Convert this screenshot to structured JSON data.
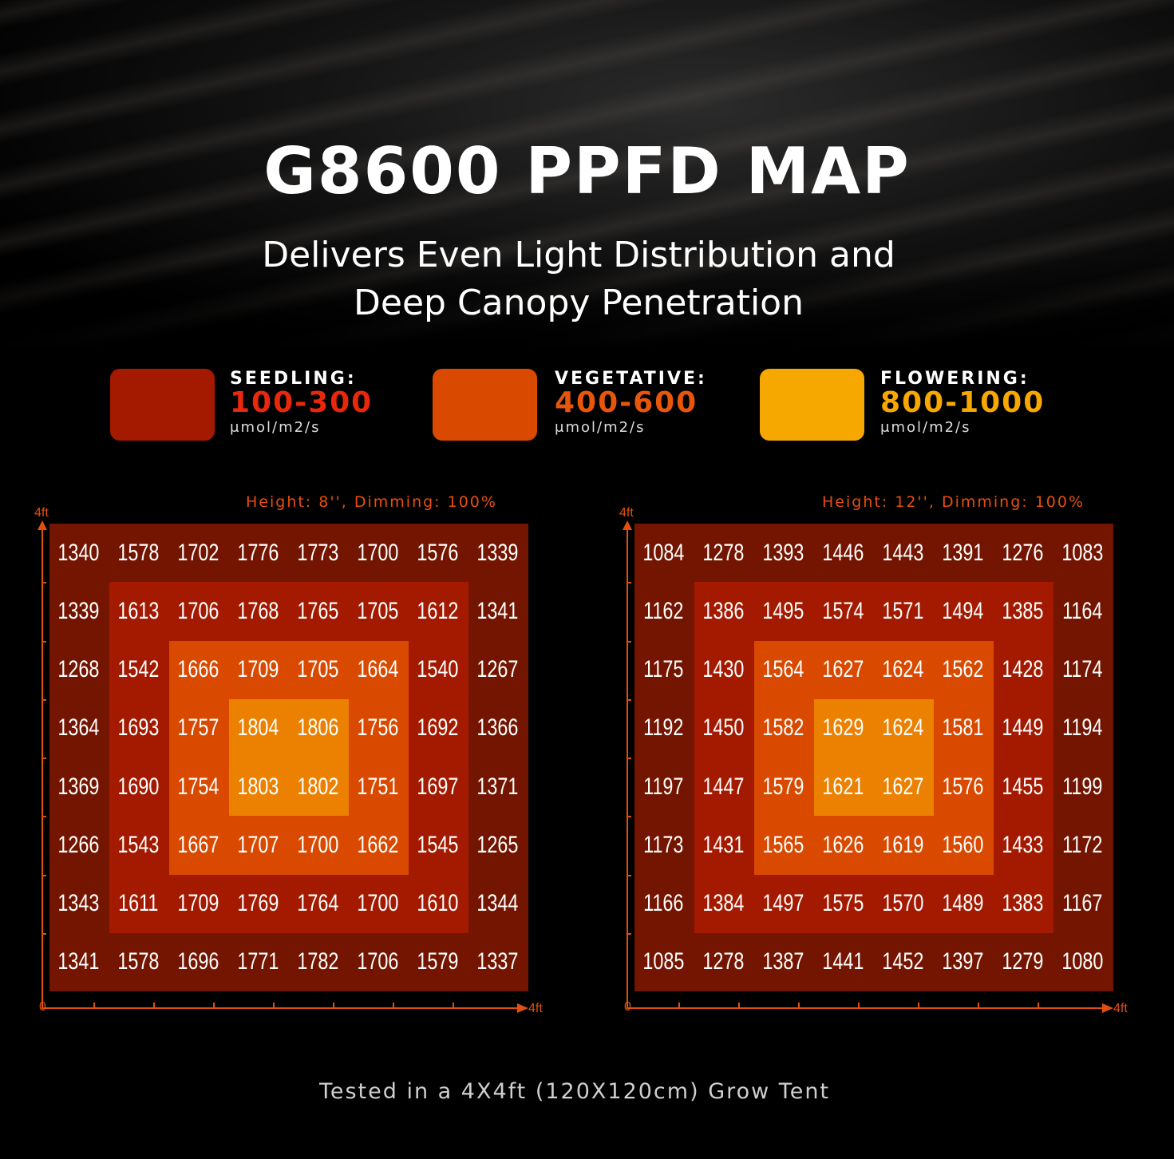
{
  "header": {
    "title": "G8600 PPFD MAP",
    "subtitle_line1": "Delivers Even Light Distribution and",
    "subtitle_line2": "Deep Canopy Penetration"
  },
  "legend": [
    {
      "label": "SEEDLING:",
      "range": "100-300",
      "unit": "μmol/m2/s",
      "swatch_color": "#a31a00",
      "text_color": "#e8280a"
    },
    {
      "label": "VEGETATIVE:",
      "range": "400-600",
      "unit": "μmol/m2/s",
      "swatch_color": "#d94a00",
      "text_color": "#e8560a"
    },
    {
      "label": "FLOWERING:",
      "range": "800-1000",
      "unit": "μmol/m2/s",
      "swatch_color": "#f7a800",
      "text_color": "#f7a800"
    }
  ],
  "zone_colors": [
    "#731500",
    "#a31a00",
    "#d94a00",
    "#ec8000"
  ],
  "chart_data": [
    {
      "type": "heatmap",
      "title": "Height: 8'', Dimming: 100%",
      "x_axis": {
        "min_label": "0",
        "max_label": "4ft"
      },
      "y_axis": {
        "max_label": "4ft"
      },
      "values": [
        [
          1340,
          1578,
          1702,
          1776,
          1773,
          1700,
          1576,
          1339
        ],
        [
          1339,
          1613,
          1706,
          1768,
          1765,
          1705,
          1612,
          1341
        ],
        [
          1268,
          1542,
          1666,
          1709,
          1705,
          1664,
          1540,
          1267
        ],
        [
          1364,
          1693,
          1757,
          1804,
          1806,
          1756,
          1692,
          1366
        ],
        [
          1369,
          1690,
          1754,
          1803,
          1802,
          1751,
          1697,
          1371
        ],
        [
          1266,
          1543,
          1667,
          1707,
          1700,
          1662,
          1545,
          1265
        ],
        [
          1343,
          1611,
          1709,
          1769,
          1764,
          1700,
          1610,
          1344
        ],
        [
          1341,
          1578,
          1696,
          1771,
          1782,
          1706,
          1579,
          1337
        ]
      ]
    },
    {
      "type": "heatmap",
      "title": "Height: 12'', Dimming: 100%",
      "x_axis": {
        "min_label": "0",
        "max_label": "4ft"
      },
      "y_axis": {
        "max_label": "4ft"
      },
      "values": [
        [
          1084,
          1278,
          1393,
          1446,
          1443,
          1391,
          1276,
          1083
        ],
        [
          1162,
          1386,
          1495,
          1574,
          1571,
          1494,
          1385,
          1164
        ],
        [
          1175,
          1430,
          1564,
          1627,
          1624,
          1562,
          1428,
          1174
        ],
        [
          1192,
          1450,
          1582,
          1629,
          1624,
          1581,
          1449,
          1194
        ],
        [
          1197,
          1447,
          1579,
          1621,
          1627,
          1576,
          1455,
          1199
        ],
        [
          1173,
          1431,
          1565,
          1626,
          1619,
          1560,
          1433,
          1172
        ],
        [
          1166,
          1384,
          1497,
          1575,
          1570,
          1489,
          1383,
          1167
        ],
        [
          1085,
          1278,
          1387,
          1441,
          1452,
          1397,
          1279,
          1080
        ]
      ]
    }
  ],
  "footer": "Tested in a 4X4ft (120X120cm) Grow Tent"
}
